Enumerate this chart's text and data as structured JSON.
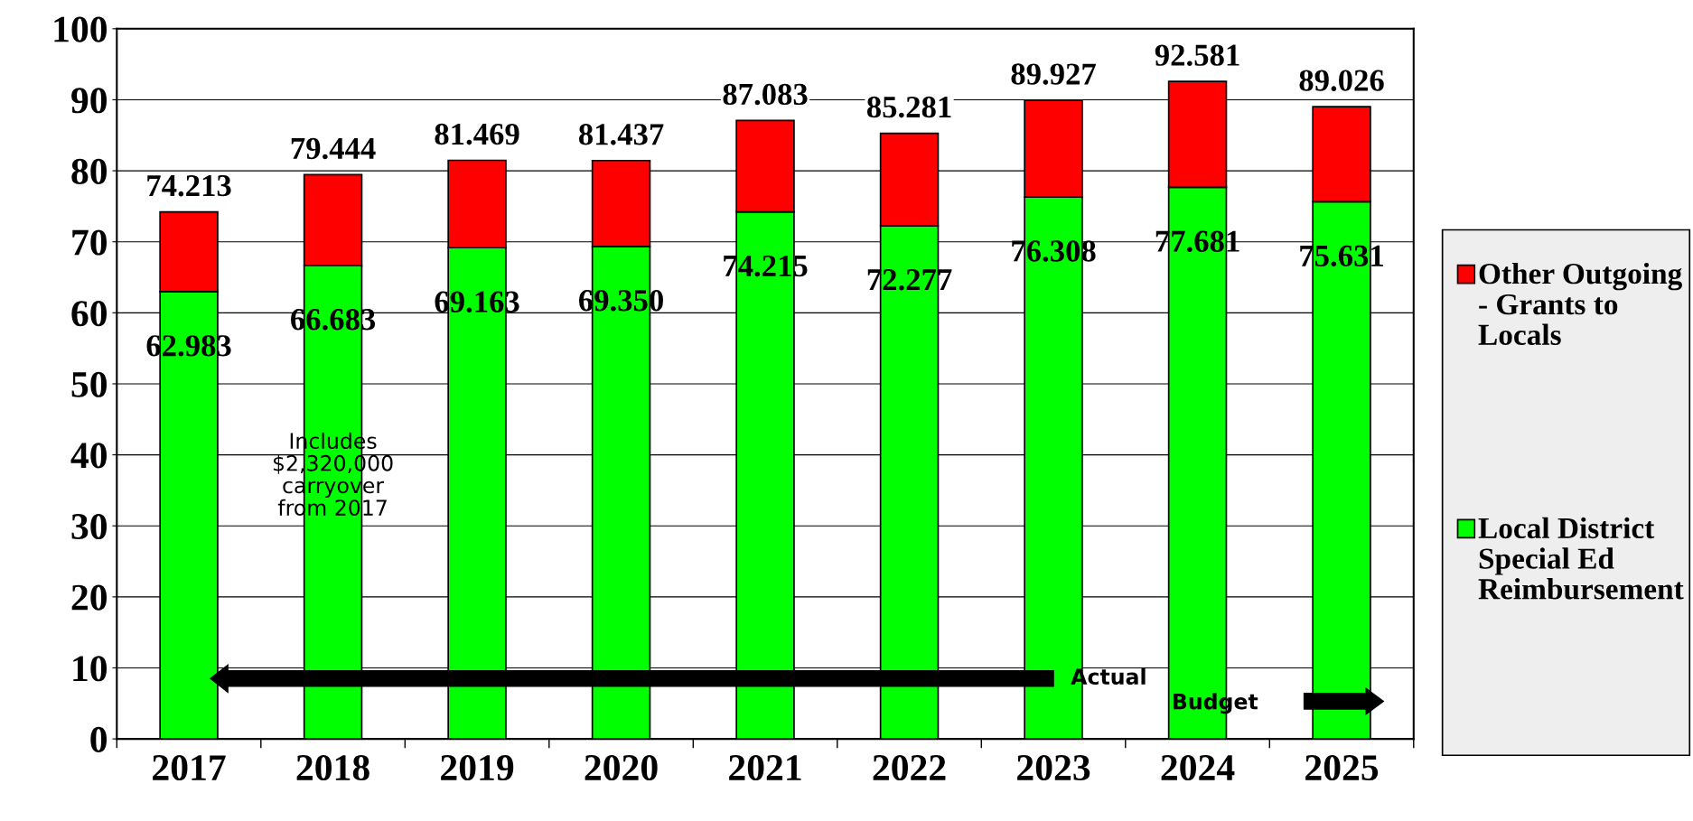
{
  "chart_data": {
    "type": "bar",
    "stacked": true,
    "categories": [
      "2017",
      "2018",
      "2019",
      "2020",
      "2021",
      "2022",
      "2023",
      "2024",
      "2025"
    ],
    "series": [
      {
        "name": "Local District Special Ed Reimbursement",
        "color": "#00ff00",
        "values": [
          62.983,
          66.683,
          69.163,
          69.35,
          74.215,
          72.277,
          76.308,
          77.681,
          75.631
        ],
        "value_labels": [
          "62.983",
          "66.683",
          "69.163",
          "69.350",
          "74.215",
          "72.277",
          "76.308",
          "77.681",
          "75.631"
        ]
      },
      {
        "name": "Other Outgoing - Grants to Locals",
        "color": "#ff0000",
        "values": [
          11.23,
          12.761,
          12.306,
          12.087,
          12.868,
          13.004,
          13.619,
          14.9,
          13.395
        ]
      }
    ],
    "totals": [
      "74.213",
      "79.444",
      "81.469",
      "81.437",
      "87.083",
      "85.281",
      "89.927",
      "92.581",
      "89.026"
    ],
    "ylim": [
      0,
      100
    ],
    "yticks": [
      0,
      10,
      20,
      30,
      40,
      50,
      60,
      70,
      80,
      90,
      100
    ],
    "grid": "y",
    "legend": "right",
    "annotations": [
      "Includes $2,320,000 carryover from 2017",
      "Actual",
      "Budget"
    ]
  }
}
